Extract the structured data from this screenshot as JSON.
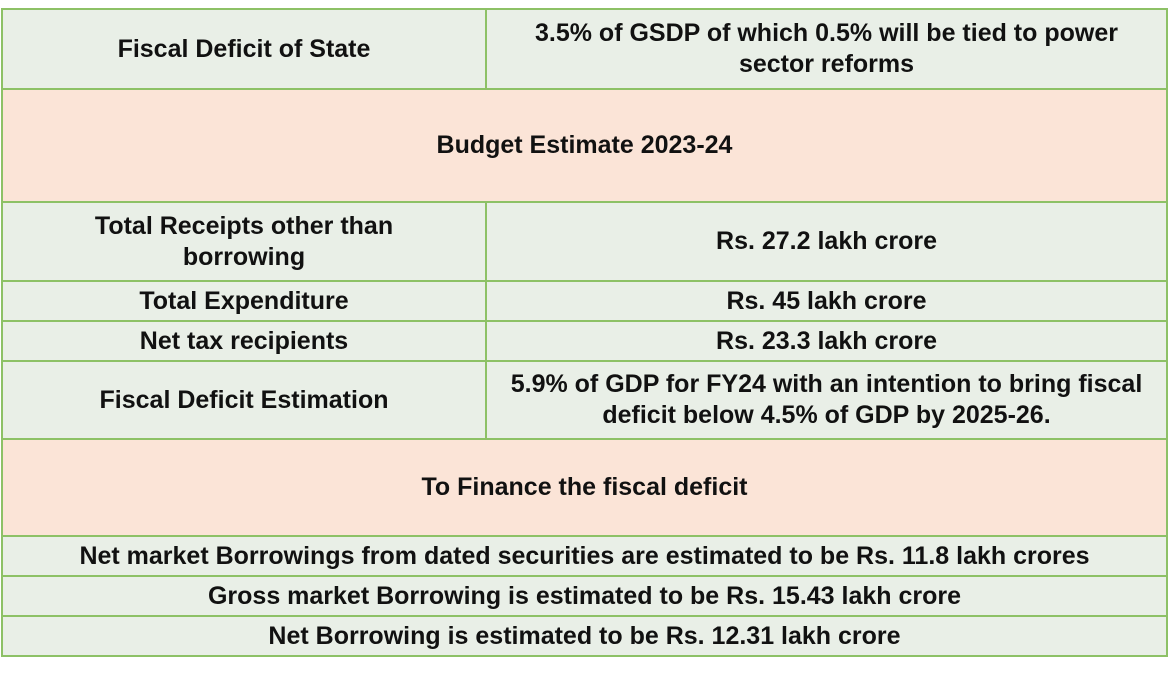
{
  "rows": [
    {
      "label": "Fiscal Deficit of State",
      "value": "3.5% of GSDP of which 0.5% will be tied to power sector reforms"
    },
    {
      "header": "Budget Estimate 2023-24"
    },
    {
      "label": "Total Receipts other than borrowing",
      "value": "Rs. 27.2 lakh crore"
    },
    {
      "label": "Total Expenditure",
      "value": "Rs. 45 lakh crore"
    },
    {
      "label": "Net tax recipients",
      "value": "Rs. 23.3 lakh crore"
    },
    {
      "label": "Fiscal Deficit Estimation",
      "value": "5.9% of GDP for FY24 with an intention to bring fiscal deficit below 4.5% of GDP by 2025-26."
    },
    {
      "header": "To Finance the fiscal deficit"
    },
    {
      "full": "Net market Borrowings from dated securities are estimated to be Rs. 11.8 lakh crores"
    },
    {
      "full": "Gross market Borrowing is estimated to be Rs. 15.43 lakh crore"
    },
    {
      "full": "Net Borrowing is estimated to be Rs. 12.31 lakh crore"
    }
  ]
}
